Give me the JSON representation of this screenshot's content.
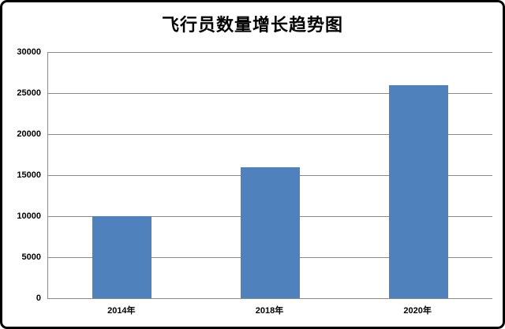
{
  "chart_data": {
    "type": "bar",
    "title": "飞行员数量增长趋势图",
    "categories": [
      "2014年",
      "2018年",
      "2020年"
    ],
    "values": [
      10000,
      16000,
      26000
    ],
    "xlabel": "",
    "ylabel": "",
    "ylim": [
      0,
      30000
    ],
    "yticks": [
      0,
      5000,
      10000,
      15000,
      20000,
      25000,
      30000
    ],
    "grid": true,
    "legend_position": "none",
    "bar_color": "#4F81BD",
    "gridline_color": "#8a8a8a",
    "text_color": "#000000",
    "frame_border_color": "#000000"
  }
}
